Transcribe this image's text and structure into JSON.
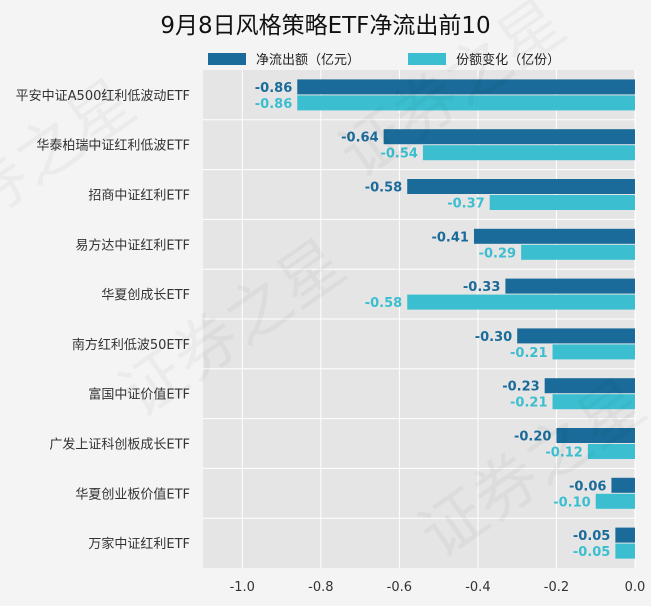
{
  "chart_data": {
    "type": "bar",
    "orientation": "horizontal",
    "title": "9月8日风格策略ETF净流出前10",
    "categories": [
      "平安中证A500红利低波动ETF",
      "华泰柏瑞中证红利低波ETF",
      "招商中证红利ETF",
      "易方达中证红利ETF",
      "华夏创成长ETF",
      "南方红利低波50ETF",
      "富国中证价值ETF",
      "广发上证科创板成长ETF",
      "华夏创业板价值ETF",
      "万家中证红利ETF"
    ],
    "series": [
      {
        "name": "净流出额（亿元）",
        "color": "#1a6b99",
        "values": [
          -0.86,
          -0.64,
          -0.58,
          -0.41,
          -0.33,
          -0.3,
          -0.23,
          -0.2,
          -0.06,
          -0.05
        ]
      },
      {
        "name": "份额变化（亿份）",
        "color": "#3bbfd0",
        "values": [
          -0.86,
          -0.54,
          -0.37,
          -0.29,
          -0.58,
          -0.21,
          -0.21,
          -0.12,
          -0.1,
          -0.05
        ]
      }
    ],
    "xlim": [
      -1.1,
      0.0
    ],
    "xticks": [
      -1.0,
      -0.8,
      -0.6,
      -0.4,
      -0.2,
      0.0
    ],
    "xtick_labels": [
      "-1.0",
      "-0.8",
      "-0.6",
      "-0.4",
      "-0.2",
      "0.0"
    ],
    "grid": true,
    "legend_position": "top"
  },
  "watermark": "证券之星"
}
